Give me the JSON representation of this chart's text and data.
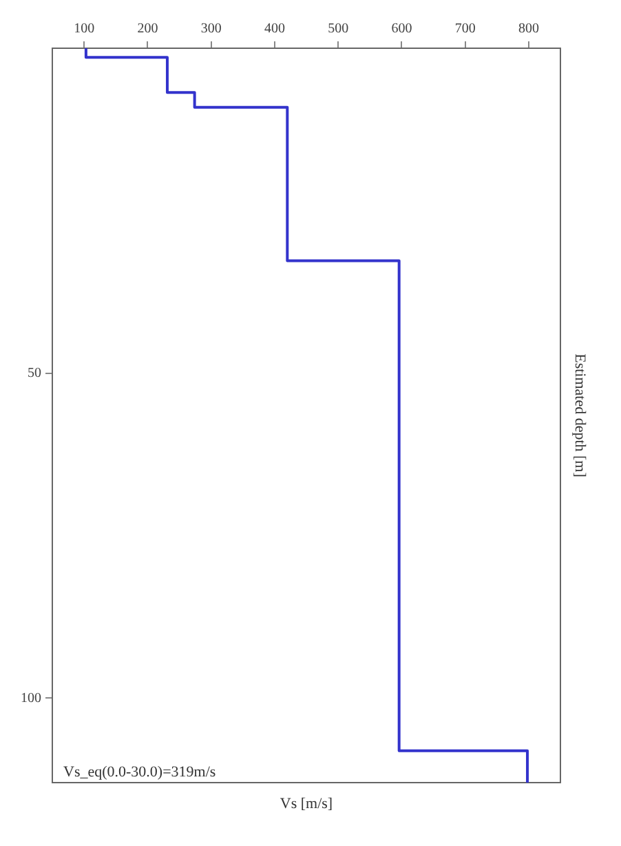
{
  "chart_data": {
    "type": "line",
    "xlabel": "Vs [m/s]",
    "ylabel": "Estimated depth [m]",
    "annotations": [
      "Vs_eq(0.0-30.0)=319m/s"
    ],
    "series": [
      {
        "color": "#3333cc",
        "x": [
          103,
          103,
          231,
          231,
          274,
          274,
          420,
          420,
          596,
          596,
          798,
          798
        ],
        "values": [
          0,
          1.4,
          1.4,
          6.8,
          6.8,
          9.1,
          9.1,
          32.7,
          32.7,
          108.1,
          108.1,
          113
        ]
      }
    ],
    "xlim": [
      50,
      850
    ],
    "xticks": [
      100,
      200,
      300,
      400,
      500,
      600,
      700,
      800
    ],
    "ylim": [
      113,
      0
    ],
    "yticks": [
      50,
      100
    ],
    "grid": false,
    "legend": false,
    "marker": "none",
    "line_style": "solid"
  }
}
